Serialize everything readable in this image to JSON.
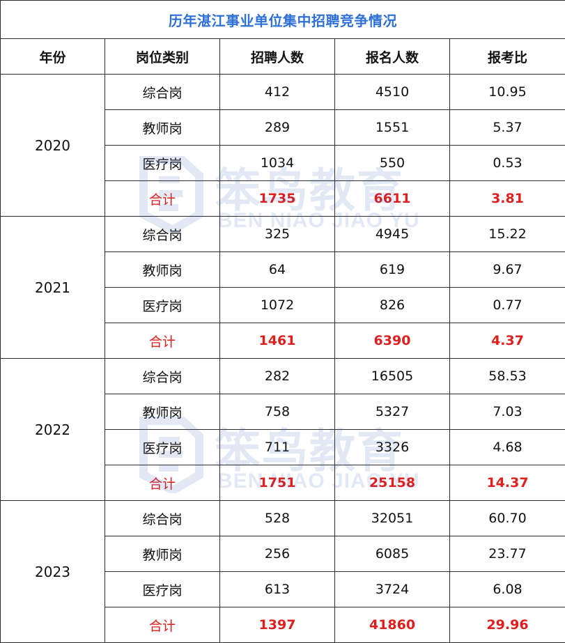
{
  "title": "历年湛江事业单位集中招聘竞争情况",
  "headers": [
    "年份",
    "岗位类别",
    "招聘人数",
    "报名人数",
    "报考比"
  ],
  "watermark": {
    "cn": "笨鸟教育",
    "en": "BEN NIAO JIAO YU"
  },
  "years": [
    {
      "year": "2020",
      "rows": [
        {
          "category": "综合岗",
          "recruit": "412",
          "apply": "4510",
          "ratio": "10.95"
        },
        {
          "category": "教师岗",
          "recruit": "289",
          "apply": "1551",
          "ratio": "5.37"
        },
        {
          "category": "医疗岗",
          "recruit": "1034",
          "apply": "550",
          "ratio": "0.53"
        },
        {
          "category": "合计",
          "recruit": "1735",
          "apply": "6611",
          "ratio": "3.81"
        }
      ]
    },
    {
      "year": "2021",
      "rows": [
        {
          "category": "综合岗",
          "recruit": "325",
          "apply": "4945",
          "ratio": "15.22"
        },
        {
          "category": "教师岗",
          "recruit": "64",
          "apply": "619",
          "ratio": "9.67"
        },
        {
          "category": "医疗岗",
          "recruit": "1072",
          "apply": "826",
          "ratio": "0.77"
        },
        {
          "category": "合计",
          "recruit": "1461",
          "apply": "6390",
          "ratio": "4.37"
        }
      ]
    },
    {
      "year": "2022",
      "rows": [
        {
          "category": "综合岗",
          "recruit": "282",
          "apply": "16505",
          "ratio": "58.53"
        },
        {
          "category": "教师岗",
          "recruit": "758",
          "apply": "5327",
          "ratio": "7.03"
        },
        {
          "category": "医疗岗",
          "recruit": "711",
          "apply": "3326",
          "ratio": "4.68"
        },
        {
          "category": "合计",
          "recruit": "1751",
          "apply": "25158",
          "ratio": "14.37"
        }
      ]
    },
    {
      "year": "2023",
      "rows": [
        {
          "category": "综合岗",
          "recruit": "528",
          "apply": "32051",
          "ratio": "60.70"
        },
        {
          "category": "教师岗",
          "recruit": "256",
          "apply": "6085",
          "ratio": "23.77"
        },
        {
          "category": "医疗岗",
          "recruit": "613",
          "apply": "3724",
          "ratio": "6.08"
        },
        {
          "category": "合计",
          "recruit": "1397",
          "apply": "41860",
          "ratio": "29.96"
        }
      ]
    }
  ],
  "colors": {
    "title": "#2e6fd8",
    "total": "#e01e1e",
    "border": "#2b2b2b",
    "watermark": "#2a5fb0"
  }
}
